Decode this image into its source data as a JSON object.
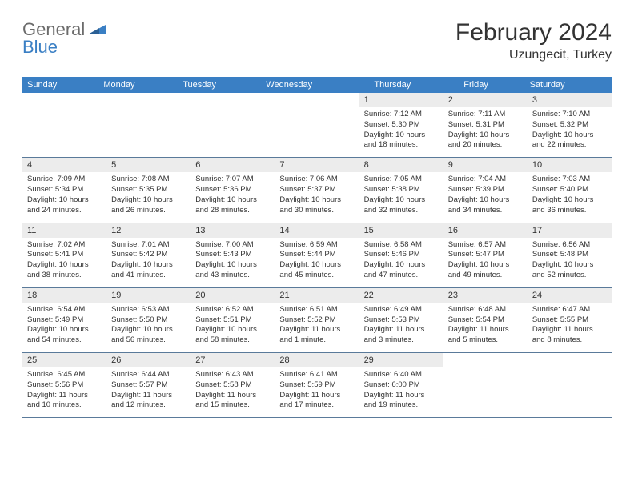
{
  "logo": {
    "text1": "General",
    "text2": "Blue"
  },
  "title": "February 2024",
  "location": "Uzungecit, Turkey",
  "dow": [
    "Sunday",
    "Monday",
    "Tuesday",
    "Wednesday",
    "Thursday",
    "Friday",
    "Saturday"
  ],
  "colors": {
    "header_bg": "#3a7fc4",
    "header_text": "#ffffff",
    "daynum_bg": "#ececec",
    "border": "#5a7a9a",
    "body_text": "#333333"
  },
  "weeks": [
    [
      {
        "n": "",
        "sr": "",
        "ss": "",
        "dl": ""
      },
      {
        "n": "",
        "sr": "",
        "ss": "",
        "dl": ""
      },
      {
        "n": "",
        "sr": "",
        "ss": "",
        "dl": ""
      },
      {
        "n": "",
        "sr": "",
        "ss": "",
        "dl": ""
      },
      {
        "n": "1",
        "sr": "Sunrise: 7:12 AM",
        "ss": "Sunset: 5:30 PM",
        "dl": "Daylight: 10 hours and 18 minutes."
      },
      {
        "n": "2",
        "sr": "Sunrise: 7:11 AM",
        "ss": "Sunset: 5:31 PM",
        "dl": "Daylight: 10 hours and 20 minutes."
      },
      {
        "n": "3",
        "sr": "Sunrise: 7:10 AM",
        "ss": "Sunset: 5:32 PM",
        "dl": "Daylight: 10 hours and 22 minutes."
      }
    ],
    [
      {
        "n": "4",
        "sr": "Sunrise: 7:09 AM",
        "ss": "Sunset: 5:34 PM",
        "dl": "Daylight: 10 hours and 24 minutes."
      },
      {
        "n": "5",
        "sr": "Sunrise: 7:08 AM",
        "ss": "Sunset: 5:35 PM",
        "dl": "Daylight: 10 hours and 26 minutes."
      },
      {
        "n": "6",
        "sr": "Sunrise: 7:07 AM",
        "ss": "Sunset: 5:36 PM",
        "dl": "Daylight: 10 hours and 28 minutes."
      },
      {
        "n": "7",
        "sr": "Sunrise: 7:06 AM",
        "ss": "Sunset: 5:37 PM",
        "dl": "Daylight: 10 hours and 30 minutes."
      },
      {
        "n": "8",
        "sr": "Sunrise: 7:05 AM",
        "ss": "Sunset: 5:38 PM",
        "dl": "Daylight: 10 hours and 32 minutes."
      },
      {
        "n": "9",
        "sr": "Sunrise: 7:04 AM",
        "ss": "Sunset: 5:39 PM",
        "dl": "Daylight: 10 hours and 34 minutes."
      },
      {
        "n": "10",
        "sr": "Sunrise: 7:03 AM",
        "ss": "Sunset: 5:40 PM",
        "dl": "Daylight: 10 hours and 36 minutes."
      }
    ],
    [
      {
        "n": "11",
        "sr": "Sunrise: 7:02 AM",
        "ss": "Sunset: 5:41 PM",
        "dl": "Daylight: 10 hours and 38 minutes."
      },
      {
        "n": "12",
        "sr": "Sunrise: 7:01 AM",
        "ss": "Sunset: 5:42 PM",
        "dl": "Daylight: 10 hours and 41 minutes."
      },
      {
        "n": "13",
        "sr": "Sunrise: 7:00 AM",
        "ss": "Sunset: 5:43 PM",
        "dl": "Daylight: 10 hours and 43 minutes."
      },
      {
        "n": "14",
        "sr": "Sunrise: 6:59 AM",
        "ss": "Sunset: 5:44 PM",
        "dl": "Daylight: 10 hours and 45 minutes."
      },
      {
        "n": "15",
        "sr": "Sunrise: 6:58 AM",
        "ss": "Sunset: 5:46 PM",
        "dl": "Daylight: 10 hours and 47 minutes."
      },
      {
        "n": "16",
        "sr": "Sunrise: 6:57 AM",
        "ss": "Sunset: 5:47 PM",
        "dl": "Daylight: 10 hours and 49 minutes."
      },
      {
        "n": "17",
        "sr": "Sunrise: 6:56 AM",
        "ss": "Sunset: 5:48 PM",
        "dl": "Daylight: 10 hours and 52 minutes."
      }
    ],
    [
      {
        "n": "18",
        "sr": "Sunrise: 6:54 AM",
        "ss": "Sunset: 5:49 PM",
        "dl": "Daylight: 10 hours and 54 minutes."
      },
      {
        "n": "19",
        "sr": "Sunrise: 6:53 AM",
        "ss": "Sunset: 5:50 PM",
        "dl": "Daylight: 10 hours and 56 minutes."
      },
      {
        "n": "20",
        "sr": "Sunrise: 6:52 AM",
        "ss": "Sunset: 5:51 PM",
        "dl": "Daylight: 10 hours and 58 minutes."
      },
      {
        "n": "21",
        "sr": "Sunrise: 6:51 AM",
        "ss": "Sunset: 5:52 PM",
        "dl": "Daylight: 11 hours and 1 minute."
      },
      {
        "n": "22",
        "sr": "Sunrise: 6:49 AM",
        "ss": "Sunset: 5:53 PM",
        "dl": "Daylight: 11 hours and 3 minutes."
      },
      {
        "n": "23",
        "sr": "Sunrise: 6:48 AM",
        "ss": "Sunset: 5:54 PM",
        "dl": "Daylight: 11 hours and 5 minutes."
      },
      {
        "n": "24",
        "sr": "Sunrise: 6:47 AM",
        "ss": "Sunset: 5:55 PM",
        "dl": "Daylight: 11 hours and 8 minutes."
      }
    ],
    [
      {
        "n": "25",
        "sr": "Sunrise: 6:45 AM",
        "ss": "Sunset: 5:56 PM",
        "dl": "Daylight: 11 hours and 10 minutes."
      },
      {
        "n": "26",
        "sr": "Sunrise: 6:44 AM",
        "ss": "Sunset: 5:57 PM",
        "dl": "Daylight: 11 hours and 12 minutes."
      },
      {
        "n": "27",
        "sr": "Sunrise: 6:43 AM",
        "ss": "Sunset: 5:58 PM",
        "dl": "Daylight: 11 hours and 15 minutes."
      },
      {
        "n": "28",
        "sr": "Sunrise: 6:41 AM",
        "ss": "Sunset: 5:59 PM",
        "dl": "Daylight: 11 hours and 17 minutes."
      },
      {
        "n": "29",
        "sr": "Sunrise: 6:40 AM",
        "ss": "Sunset: 6:00 PM",
        "dl": "Daylight: 11 hours and 19 minutes."
      },
      {
        "n": "",
        "sr": "",
        "ss": "",
        "dl": ""
      },
      {
        "n": "",
        "sr": "",
        "ss": "",
        "dl": ""
      }
    ]
  ]
}
